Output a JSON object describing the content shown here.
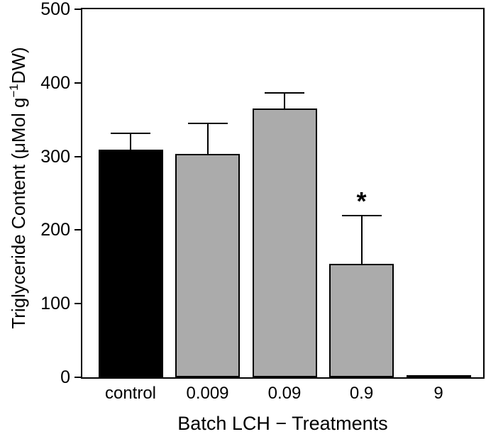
{
  "figure": {
    "background": "#ffffff",
    "frame_color": "#000000"
  },
  "chart_data": {
    "type": "bar",
    "title": "",
    "categories": [
      "control",
      "0.009",
      "0.09",
      "0.9",
      "9"
    ],
    "values": [
      309,
      303,
      365,
      154,
      0
    ],
    "errors_upper": [
      22,
      42,
      21,
      66,
      0
    ],
    "bar_colors": [
      "#000000",
      "#ABABAB",
      "#ABABAB",
      "#ABABAB",
      "#ABABAB"
    ],
    "bar_border_color": "#000000",
    "annotations": [
      {
        "category_index": 3,
        "text": "*"
      }
    ],
    "xlabel": "Batch LCH − Treatments",
    "ylabel": "Triglyceride Content (μMol g⁻¹DW)",
    "ylabel_parts": {
      "prefix": "Triglyceride Content (μMol g",
      "superscript": "−1",
      "suffix": "DW)"
    },
    "ylim": [
      0,
      500
    ],
    "yticks": [
      0,
      100,
      200,
      300,
      400,
      500
    ],
    "grid": false,
    "frame": "full-box",
    "legend": "none",
    "error_bars": "upper-only"
  }
}
